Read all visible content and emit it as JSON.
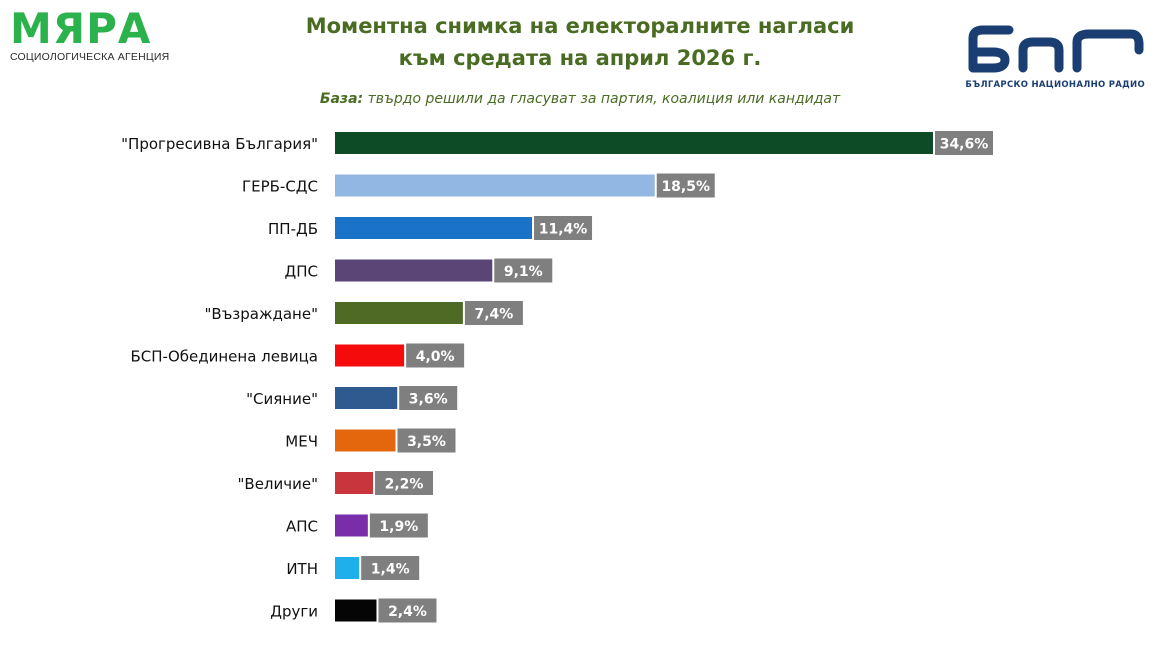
{
  "header": {
    "logo_left_name": "МЯРА",
    "logo_left_sub": "СОЦИОЛОГИЧЕСКА АГЕНЦИЯ",
    "title_line1": "Моментна снимка на електоралните нагласи",
    "title_line2": "към средата на април 2026 г.",
    "subtitle_label": "База:",
    "subtitle_text": " твърдо решили да гласуват за партия, коалиция или кандидат",
    "logo_right_caption": "БЪЛГАРСКО НАЦИОНАЛНО РАДИО",
    "logo_right_color": "#1b3e72"
  },
  "chart_data": {
    "type": "bar",
    "orientation": "horizontal",
    "title": "Моментна снимка на електоралните нагласи към средата на април 2026 г.",
    "subtitle": "База: твърдо решили да гласуват за партия, коалиция или кандидат",
    "xlabel": "",
    "ylabel": "",
    "grid": false,
    "legend": "none",
    "xlim": [
      0,
      34.6
    ],
    "categories": [
      "\"Прогресивна България\"",
      "ГЕРБ-СДС",
      "ПП-ДБ",
      "ДПС",
      "\"Възраждане\"",
      "БСП-Обединена левица",
      "\"Сияние\"",
      "МЕЧ",
      "\"Величие\"",
      "АПС",
      "ИТН",
      "Други"
    ],
    "values": [
      34.6,
      18.5,
      11.4,
      9.1,
      7.4,
      4.0,
      3.6,
      3.5,
      2.2,
      1.9,
      1.4,
      2.4
    ],
    "data_labels": [
      "34,6%",
      "18,5%",
      "11,4%",
      "9,1%",
      "7,4%",
      "4,0%",
      "3,6%",
      "3,5%",
      "2,2%",
      "1,9%",
      "1,4%",
      "2,4%"
    ],
    "colors": [
      "#0d4a26",
      "#93b7e3",
      "#1b73c9",
      "#5b4577",
      "#4f6a25",
      "#f50b0b",
      "#2f5a8f",
      "#e5670d",
      "#c8353c",
      "#7a2da8",
      "#1fb0ec",
      "#050505"
    ],
    "label_box_color": "#7f7f7f"
  }
}
